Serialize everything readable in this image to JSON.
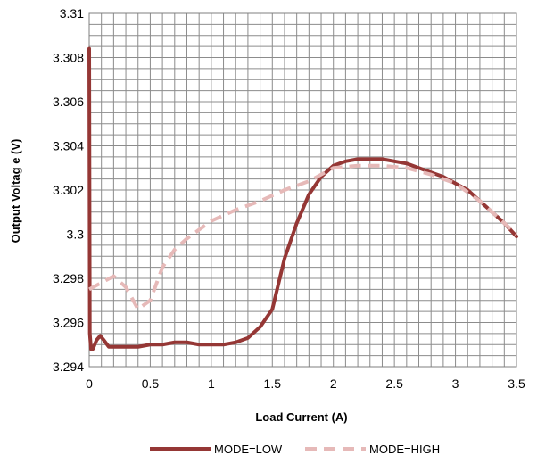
{
  "chart_data": {
    "type": "line",
    "title": "",
    "xlabel": "Load Current (A)",
    "ylabel": "Output Voltag e (V)",
    "xlim": [
      0,
      3.5
    ],
    "ylim": [
      3.294,
      3.31
    ],
    "x_ticks": [
      0,
      0.5,
      1,
      1.5,
      2,
      2.5,
      3,
      3.5
    ],
    "x_tick_labels": [
      "0",
      "0.5",
      "1",
      "1.5",
      "2",
      "2.5",
      "3",
      "3.5"
    ],
    "y_ticks": [
      3.294,
      3.296,
      3.298,
      3.3,
      3.302,
      3.304,
      3.306,
      3.308,
      3.31
    ],
    "y_tick_labels": [
      "3.294",
      "3.296",
      "3.298",
      "3.3",
      "3.302",
      "3.304",
      "3.306",
      "3.308",
      "3.31"
    ],
    "x_minor_step": 0.1,
    "y_minor_step": 0.0005,
    "grid": true,
    "legend_position": "bottom",
    "series": [
      {
        "name": "MODE=LOW",
        "color": "#953735",
        "style": "solid",
        "points": [
          [
            0.0,
            3.3084
          ],
          [
            0.005,
            3.2955
          ],
          [
            0.015,
            3.2948
          ],
          [
            0.03,
            3.2948
          ],
          [
            0.06,
            3.2952
          ],
          [
            0.09,
            3.2954
          ],
          [
            0.12,
            3.2952
          ],
          [
            0.16,
            3.2949
          ],
          [
            0.2,
            3.2949
          ],
          [
            0.3,
            3.2949
          ],
          [
            0.4,
            3.2949
          ],
          [
            0.5,
            3.295
          ],
          [
            0.6,
            3.295
          ],
          [
            0.7,
            3.2951
          ],
          [
            0.8,
            3.2951
          ],
          [
            0.9,
            3.295
          ],
          [
            1.0,
            3.295
          ],
          [
            1.1,
            3.295
          ],
          [
            1.2,
            3.2951
          ],
          [
            1.3,
            3.2953
          ],
          [
            1.4,
            3.2958
          ],
          [
            1.5,
            3.2966
          ],
          [
            1.6,
            3.2989
          ],
          [
            1.7,
            3.3005
          ],
          [
            1.8,
            3.3018
          ],
          [
            1.9,
            3.3026
          ],
          [
            2.0,
            3.3031
          ],
          [
            2.1,
            3.3033
          ],
          [
            2.2,
            3.3034
          ],
          [
            2.3,
            3.3034
          ],
          [
            2.4,
            3.3034
          ],
          [
            2.5,
            3.3033
          ],
          [
            2.6,
            3.3032
          ],
          [
            2.7,
            3.303
          ],
          [
            2.8,
            3.3028
          ],
          [
            2.9,
            3.3026
          ],
          [
            3.0,
            3.3023
          ],
          [
            3.1,
            3.302
          ],
          [
            3.2,
            3.3015
          ],
          [
            3.3,
            3.301
          ],
          [
            3.4,
            3.3005
          ],
          [
            3.5,
            3.2999
          ]
        ]
      },
      {
        "name": "MODE=HIGH",
        "color": "#e6b9b8",
        "style": "dashed",
        "points": [
          [
            0.0,
            3.2975
          ],
          [
            0.1,
            3.2978
          ],
          [
            0.2,
            3.2981
          ],
          [
            0.3,
            3.2976
          ],
          [
            0.4,
            3.2966
          ],
          [
            0.5,
            3.297
          ],
          [
            0.6,
            3.2985
          ],
          [
            0.7,
            3.2993
          ],
          [
            0.8,
            3.2998
          ],
          [
            0.9,
            3.3002
          ],
          [
            1.0,
            3.3006
          ],
          [
            1.2,
            3.3011
          ],
          [
            1.4,
            3.3015
          ],
          [
            1.6,
            3.302
          ],
          [
            1.8,
            3.3024
          ],
          [
            2.0,
            3.303
          ],
          [
            2.2,
            3.3031
          ],
          [
            2.4,
            3.3031
          ],
          [
            2.6,
            3.303
          ],
          [
            2.8,
            3.3027
          ],
          [
            3.0,
            3.3023
          ],
          [
            3.2,
            3.3015
          ],
          [
            3.4,
            3.3005
          ],
          [
            3.5,
            3.3
          ]
        ]
      }
    ]
  }
}
